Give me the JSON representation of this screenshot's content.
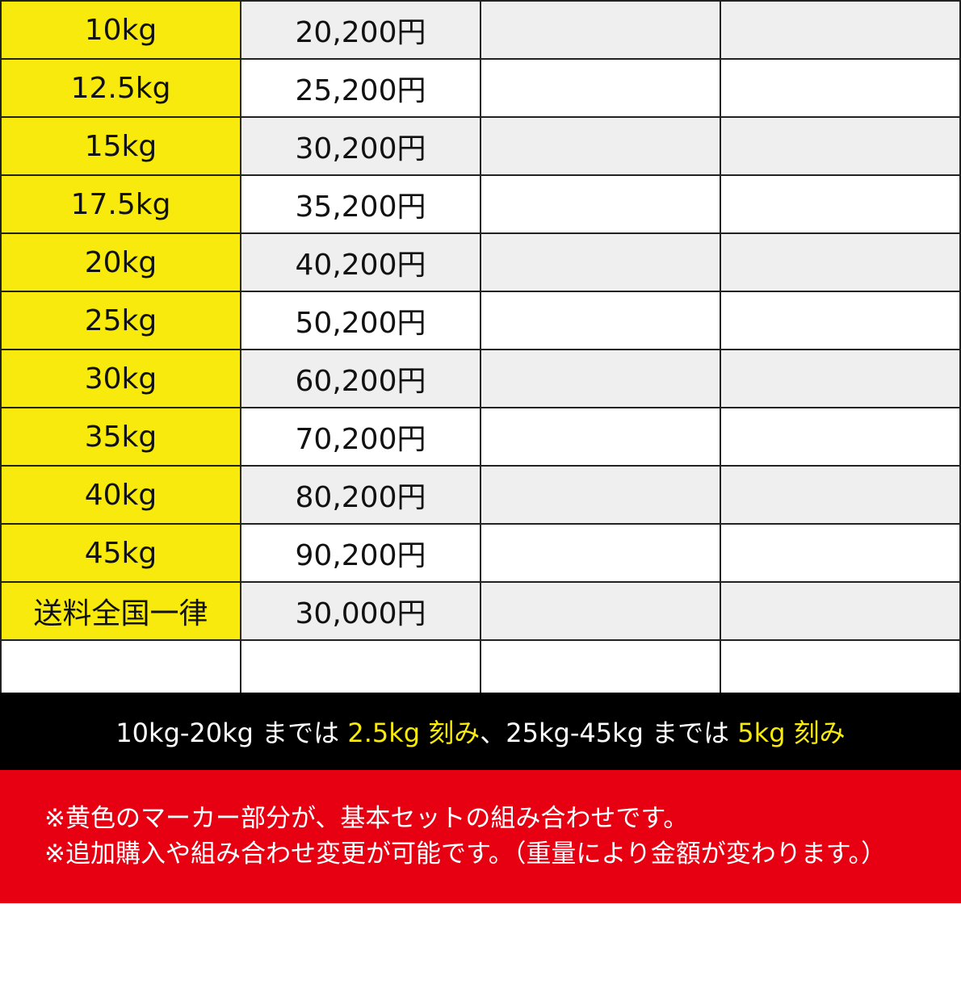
{
  "table": {
    "rows": [
      {
        "weight": "10kg",
        "price": "20,200円"
      },
      {
        "weight": "12.5kg",
        "price": "25,200円"
      },
      {
        "weight": "15kg",
        "price": "30,200円"
      },
      {
        "weight": "17.5kg",
        "price": "35,200円"
      },
      {
        "weight": "20kg",
        "price": "40,200円"
      },
      {
        "weight": "25kg",
        "price": "50,200円"
      },
      {
        "weight": "30kg",
        "price": "60,200円"
      },
      {
        "weight": "35kg",
        "price": "70,200円"
      },
      {
        "weight": "40kg",
        "price": "80,200円"
      },
      {
        "weight": "45kg",
        "price": "90,200円"
      },
      {
        "weight": "送料全国一律",
        "price": "30,000円"
      },
      {
        "weight": "",
        "price": ""
      }
    ],
    "colors": {
      "weight_column": "#f7ea0c",
      "stripe": "#efefef"
    }
  },
  "banner": {
    "part1": "10kg-20kg までは ",
    "part2": "2.5kg 刻み",
    "part3": "、25kg-45kg までは ",
    "part4": "5kg 刻み",
    "colors": {
      "background": "#000000",
      "highlight": "#f7ea0c"
    }
  },
  "notes": {
    "line1": "※黄色のマーカー部分が、基本セットの組み合わせです。",
    "line2": "※追加購入や組み合わせ変更が可能です。（重量により金額が変わります。）",
    "background": "#e60012"
  }
}
